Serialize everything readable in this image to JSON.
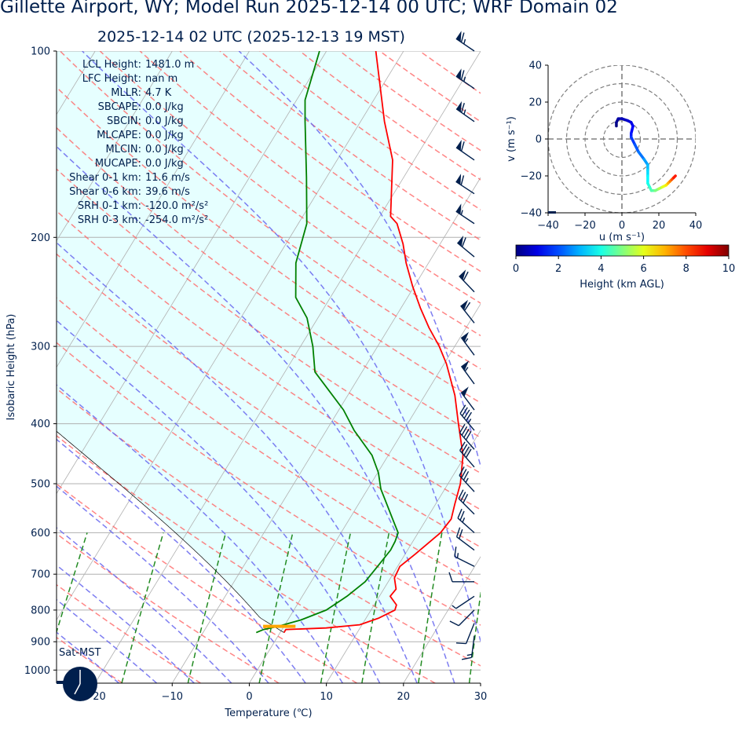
{
  "header": {
    "title": "Gillette  Airport, WY; Model Run 2025-12-14 00 UTC; WRF Domain 02",
    "subtitle": "2025-12-14 02 UTC  (2025-12-13 19 MST)"
  },
  "stats": [
    {
      "label": "LCL Height:",
      "value": "1481.0 m"
    },
    {
      "label": "LFC Height:",
      "value": "nan m"
    },
    {
      "label": "MLLR:",
      "value": "4.7 K"
    },
    {
      "label": "SBCAPE:",
      "value": "0.0 J/kg"
    },
    {
      "label": "SBCIN:",
      "value": "0.0 J/kg"
    },
    {
      "label": "MLCAPE:",
      "value": "0.0 J/kg"
    },
    {
      "label": "MLCIN:",
      "value": "0.0 J/kg"
    },
    {
      "label": "MUCAPE:",
      "value": "0.0 J/kg"
    },
    {
      "label": "Shear 0-1 km:",
      "value": "11.6 m/s"
    },
    {
      "label": "Shear 0-6 km:",
      "value": "39.6 m/s"
    },
    {
      "label": "SRH 0-1 km:",
      "value": "-120.0 m²/s²"
    },
    {
      "label": "SRH 0-3 km:",
      "value": "-254.0 m²/s²"
    }
  ],
  "clock_label": "Sat-MST",
  "colors": {
    "text": "#001f4d",
    "temperature": "#ff0000",
    "dewpoint": "#008000",
    "parcel_shade": "#e6ffff",
    "dry_adiabat": "#ff6666",
    "moist_adiabat": "#6666ee",
    "mixing_ratio": "#228b22",
    "isotherm": "#b0b0b0",
    "barb": "#001f4d",
    "surface_marker": "#ffa500"
  },
  "chart_data": [
    {
      "type": "line",
      "kind": "skew-T log-P diagram",
      "xlabel": "Temperature (℃)",
      "ylabel": "Isobaric Height (hPa)",
      "xlim": [
        -25,
        30
      ],
      "ylim": [
        1050,
        100
      ],
      "y_scale": "log",
      "x_ticks": [
        "−20",
        "−10",
        "0",
        "10",
        "20",
        "30"
      ],
      "x_tick_values": [
        -20,
        -10,
        0,
        10,
        20,
        30
      ],
      "y_ticks": [
        "100",
        "200",
        "300",
        "400",
        "500",
        "600",
        "700",
        "800",
        "900",
        "1000"
      ],
      "y_tick_values": [
        100,
        200,
        300,
        400,
        500,
        600,
        700,
        800,
        900,
        1000
      ],
      "grid": true,
      "series": [
        {
          "id": "temperature",
          "points": [
            [
              870,
              0.5
            ],
            [
              860,
              0.5
            ],
            [
              855,
              5.6
            ],
            [
              845,
              9.7
            ],
            [
              825,
              11.6
            ],
            [
              800,
              13.1
            ],
            [
              785,
              12.9
            ],
            [
              760,
              11.4
            ],
            [
              740,
              11.6
            ],
            [
              710,
              10.5
            ],
            [
              680,
              10.3
            ],
            [
              650,
              11.3
            ],
            [
              600,
              12.9
            ],
            [
              570,
              13.2
            ],
            [
              540,
              12.5
            ],
            [
              500,
              11.6
            ],
            [
              450,
              9.7
            ],
            [
              400,
              6.6
            ],
            [
              360,
              3.9
            ],
            [
              320,
              0.3
            ],
            [
              300,
              -2.0
            ],
            [
              280,
              -4.8
            ],
            [
              260,
              -7.5
            ],
            [
              240,
              -10.2
            ],
            [
              220,
              -12.9
            ],
            [
              205,
              -14.8
            ],
            [
              190,
              -17.2
            ],
            [
              185,
              -18.6
            ],
            [
              150,
              -22.8
            ],
            [
              130,
              -26.9
            ],
            [
              100,
              -33.6
            ]
          ]
        },
        {
          "id": "dewpoint",
          "points": [
            [
              870,
              -3.1
            ],
            [
              860,
              -2.4
            ],
            [
              850,
              -0.8
            ],
            [
              830,
              1.7
            ],
            [
              800,
              4.2
            ],
            [
              760,
              5.8
            ],
            [
              720,
              7.0
            ],
            [
              680,
              7.4
            ],
            [
              640,
              7.8
            ],
            [
              620,
              7.7
            ],
            [
              600,
              7.4
            ],
            [
              570,
              5.6
            ],
            [
              540,
              3.7
            ],
            [
              510,
              1.7
            ],
            [
              480,
              0.1
            ],
            [
              450,
              -2.1
            ],
            [
              410,
              -6.4
            ],
            [
              380,
              -9.4
            ],
            [
              330,
              -16.1
            ],
            [
              300,
              -18.4
            ],
            [
              270,
              -21.4
            ],
            [
              250,
              -24.5
            ],
            [
              220,
              -27.2
            ],
            [
              190,
              -28.9
            ],
            [
              160,
              -32.6
            ],
            [
              130,
              -37.2
            ],
            [
              120,
              -38.9
            ],
            [
              100,
              -40.9
            ]
          ]
        }
      ],
      "parcel_shading": true,
      "surface_marker": {
        "pressure": 850,
        "temperature_range": [
          -2.7,
          1.5
        ]
      },
      "wind_barbs": [
        {
          "p": 100,
          "u": 28,
          "v": -19
        },
        {
          "p": 115,
          "u": 28,
          "v": -19
        },
        {
          "p": 130,
          "u": 27,
          "v": -19
        },
        {
          "p": 150,
          "u": 26,
          "v": -18
        },
        {
          "p": 170,
          "u": 26,
          "v": -17
        },
        {
          "p": 190,
          "u": 24,
          "v": -16
        },
        {
          "p": 215,
          "u": 23,
          "v": -19
        },
        {
          "p": 245,
          "u": 21,
          "v": -22
        },
        {
          "p": 275,
          "u": 19,
          "v": -24
        },
        {
          "p": 310,
          "u": 17,
          "v": -23
        },
        {
          "p": 345,
          "u": 16,
          "v": -22
        },
        {
          "p": 380,
          "u": 15,
          "v": -20
        },
        {
          "p": 410,
          "u": 15,
          "v": -18
        },
        {
          "p": 440,
          "u": 14,
          "v": -16
        },
        {
          "p": 470,
          "u": 13,
          "v": -15
        },
        {
          "p": 515,
          "u": 12,
          "v": -13
        },
        {
          "p": 560,
          "u": 11,
          "v": -11
        },
        {
          "p": 600,
          "u": 9,
          "v": -8
        },
        {
          "p": 640,
          "u": 8,
          "v": -6
        },
        {
          "p": 680,
          "u": 6,
          "v": -3
        },
        {
          "p": 720,
          "u": 4,
          "v": 0
        },
        {
          "p": 760,
          "u": 3,
          "v": 2
        },
        {
          "p": 800,
          "u": 3,
          "v": 3
        },
        {
          "p": 840,
          "u": 2,
          "v": 5
        },
        {
          "p": 880,
          "u": 1,
          "v": 8
        }
      ]
    },
    {
      "type": "line",
      "kind": "hodograph",
      "xlabel": "u (m s⁻¹)",
      "ylabel": "v (m s⁻¹)",
      "xlim": [
        -40,
        40
      ],
      "ylim": [
        -40,
        40
      ],
      "x_ticks": [
        "−40",
        "−20",
        "0",
        "20",
        "40"
      ],
      "x_tick_values": [
        -40,
        -20,
        0,
        20,
        40
      ],
      "y_ticks": [
        "−40",
        "−20",
        "0",
        "20",
        "40"
      ],
      "y_tick_values": [
        -40,
        -20,
        0,
        20,
        40
      ],
      "rings": [
        10,
        20,
        30,
        40
      ],
      "colorbar": {
        "label": "Height (km AGL)",
        "ticks": [
          "0",
          "2",
          "4",
          "6",
          "8",
          "10"
        ],
        "tick_values": [
          0,
          2,
          4,
          6,
          8,
          10
        ],
        "range": [
          0,
          10
        ],
        "colormap": "jet"
      },
      "points": [
        {
          "h": 0.0,
          "u": -3,
          "v": 7
        },
        {
          "h": 0.2,
          "u": -3,
          "v": 9
        },
        {
          "h": 0.4,
          "u": -2,
          "v": 11
        },
        {
          "h": 0.6,
          "u": 0,
          "v": 11
        },
        {
          "h": 0.8,
          "u": 3,
          "v": 10
        },
        {
          "h": 1.0,
          "u": 5,
          "v": 9
        },
        {
          "h": 1.2,
          "u": 6,
          "v": 7
        },
        {
          "h": 1.5,
          "u": 5,
          "v": 3
        },
        {
          "h": 1.8,
          "u": 5,
          "v": 1
        },
        {
          "h": 2.1,
          "u": 7,
          "v": -3
        },
        {
          "h": 2.4,
          "u": 9,
          "v": -7
        },
        {
          "h": 2.8,
          "u": 12,
          "v": -11
        },
        {
          "h": 3.1,
          "u": 14,
          "v": -14
        },
        {
          "h": 3.4,
          "u": 14,
          "v": -17
        },
        {
          "h": 3.7,
          "u": 14,
          "v": -20
        },
        {
          "h": 4.0,
          "u": 14,
          "v": -24
        },
        {
          "h": 4.3,
          "u": 15,
          "v": -26
        },
        {
          "h": 4.6,
          "u": 16,
          "v": -28
        },
        {
          "h": 5.0,
          "u": 18,
          "v": -28
        },
        {
          "h": 5.5,
          "u": 20,
          "v": -27
        },
        {
          "h": 6.0,
          "u": 22,
          "v": -26
        },
        {
          "h": 6.5,
          "u": 24,
          "v": -25
        },
        {
          "h": 7.0,
          "u": 25,
          "v": -24
        },
        {
          "h": 7.5,
          "u": 26,
          "v": -23
        },
        {
          "h": 8.0,
          "u": 27,
          "v": -22
        },
        {
          "h": 8.5,
          "u": 28,
          "v": -21
        },
        {
          "h": 9.0,
          "u": 29,
          "v": -20
        }
      ]
    }
  ]
}
